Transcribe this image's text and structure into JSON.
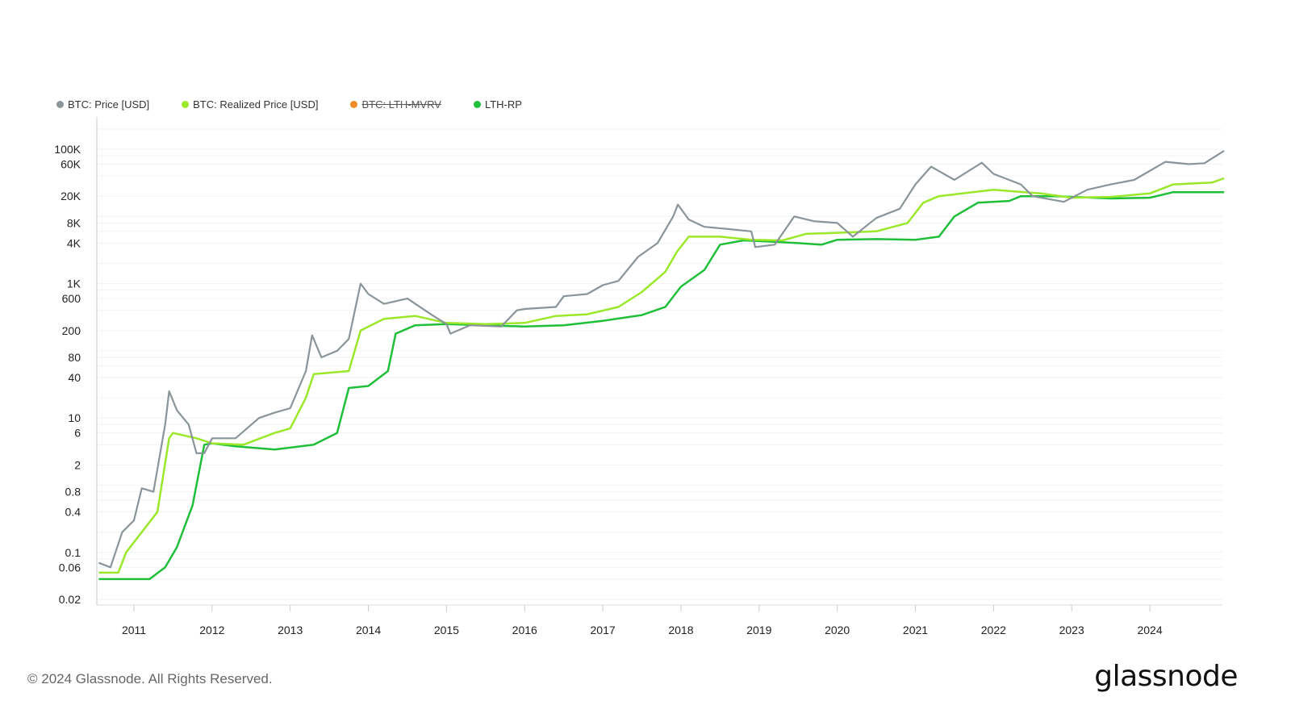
{
  "chart_data": {
    "type": "line",
    "title": "",
    "xlabel": "",
    "ylabel": "",
    "yscale": "log",
    "ylim": [
      0.015,
      200000
    ],
    "xlim": [
      2010.55,
      2024.95
    ],
    "grid": true,
    "legend_position": "top-left",
    "x_ticks": [
      "2011",
      "2012",
      "2013",
      "2014",
      "2015",
      "2016",
      "2017",
      "2018",
      "2019",
      "2020",
      "2021",
      "2022",
      "2023",
      "2024"
    ],
    "y_ticks": [
      {
        "label": "100K",
        "value": 100000
      },
      {
        "label": "60K",
        "value": 60000
      },
      {
        "label": "20K",
        "value": 20000
      },
      {
        "label": "8K",
        "value": 8000
      },
      {
        "label": "4K",
        "value": 4000
      },
      {
        "label": "1K",
        "value": 1000
      },
      {
        "label": "600",
        "value": 600
      },
      {
        "label": "200",
        "value": 200
      },
      {
        "label": "80",
        "value": 80
      },
      {
        "label": "40",
        "value": 40
      },
      {
        "label": "10",
        "value": 10
      },
      {
        "label": "6",
        "value": 6
      },
      {
        "label": "2",
        "value": 2
      },
      {
        "label": "0.8",
        "value": 0.8
      },
      {
        "label": "0.4",
        "value": 0.4
      },
      {
        "label": "0.1",
        "value": 0.1
      },
      {
        "label": "0.06",
        "value": 0.06
      },
      {
        "label": "0.02",
        "value": 0.02
      }
    ],
    "series": [
      {
        "name": "BTC: Price [USD]",
        "color": "#8a9499",
        "visible": true,
        "points": [
          [
            2010.55,
            0.07
          ],
          [
            2010.7,
            0.06
          ],
          [
            2010.85,
            0.2
          ],
          [
            2011.0,
            0.3
          ],
          [
            2011.1,
            0.9
          ],
          [
            2011.25,
            0.8
          ],
          [
            2011.4,
            8
          ],
          [
            2011.45,
            25
          ],
          [
            2011.55,
            13
          ],
          [
            2011.7,
            8
          ],
          [
            2011.8,
            3
          ],
          [
            2011.9,
            3
          ],
          [
            2012.0,
            5
          ],
          [
            2012.3,
            5
          ],
          [
            2012.6,
            10
          ],
          [
            2012.8,
            12
          ],
          [
            2013.0,
            14
          ],
          [
            2013.2,
            50
          ],
          [
            2013.28,
            170
          ],
          [
            2013.4,
            80
          ],
          [
            2013.6,
            100
          ],
          [
            2013.75,
            150
          ],
          [
            2013.9,
            1000
          ],
          [
            2014.0,
            700
          ],
          [
            2014.2,
            500
          ],
          [
            2014.5,
            600
          ],
          [
            2014.8,
            350
          ],
          [
            2015.0,
            250
          ],
          [
            2015.05,
            180
          ],
          [
            2015.3,
            240
          ],
          [
            2015.7,
            230
          ],
          [
            2015.9,
            400
          ],
          [
            2016.0,
            420
          ],
          [
            2016.4,
            450
          ],
          [
            2016.5,
            650
          ],
          [
            2016.8,
            700
          ],
          [
            2017.0,
            950
          ],
          [
            2017.2,
            1100
          ],
          [
            2017.45,
            2500
          ],
          [
            2017.7,
            4000
          ],
          [
            2017.9,
            10000
          ],
          [
            2017.96,
            15000
          ],
          [
            2018.1,
            9000
          ],
          [
            2018.3,
            7000
          ],
          [
            2018.6,
            6500
          ],
          [
            2018.9,
            6000
          ],
          [
            2018.95,
            3500
          ],
          [
            2019.2,
            3800
          ],
          [
            2019.45,
            10000
          ],
          [
            2019.7,
            8500
          ],
          [
            2020.0,
            8000
          ],
          [
            2020.2,
            5000
          ],
          [
            2020.5,
            9500
          ],
          [
            2020.8,
            13000
          ],
          [
            2021.0,
            30000
          ],
          [
            2021.2,
            55000
          ],
          [
            2021.5,
            35000
          ],
          [
            2021.85,
            63000
          ],
          [
            2022.0,
            43000
          ],
          [
            2022.35,
            30000
          ],
          [
            2022.5,
            20000
          ],
          [
            2022.9,
            16500
          ],
          [
            2023.2,
            25000
          ],
          [
            2023.5,
            30000
          ],
          [
            2023.8,
            35000
          ],
          [
            2024.2,
            65000
          ],
          [
            2024.5,
            60000
          ],
          [
            2024.7,
            62000
          ],
          [
            2024.95,
            95000
          ]
        ]
      },
      {
        "name": "BTC: Realized Price [USD]",
        "color": "#9be82a",
        "visible": true,
        "points": [
          [
            2010.55,
            0.05
          ],
          [
            2010.8,
            0.05
          ],
          [
            2010.9,
            0.1
          ],
          [
            2011.1,
            0.2
          ],
          [
            2011.3,
            0.4
          ],
          [
            2011.45,
            5
          ],
          [
            2011.5,
            6
          ],
          [
            2011.8,
            5
          ],
          [
            2012.0,
            4.2
          ],
          [
            2012.4,
            4
          ],
          [
            2012.8,
            6
          ],
          [
            2013.0,
            7
          ],
          [
            2013.2,
            20
          ],
          [
            2013.3,
            45
          ],
          [
            2013.75,
            50
          ],
          [
            2013.9,
            200
          ],
          [
            2014.2,
            300
          ],
          [
            2014.6,
            330
          ],
          [
            2015.0,
            260
          ],
          [
            2015.5,
            250
          ],
          [
            2016.0,
            260
          ],
          [
            2016.4,
            330
          ],
          [
            2016.8,
            350
          ],
          [
            2017.2,
            450
          ],
          [
            2017.5,
            750
          ],
          [
            2017.8,
            1500
          ],
          [
            2017.95,
            3000
          ],
          [
            2018.1,
            5000
          ],
          [
            2018.5,
            5000
          ],
          [
            2018.9,
            4500
          ],
          [
            2019.3,
            4400
          ],
          [
            2019.6,
            5500
          ],
          [
            2020.0,
            5700
          ],
          [
            2020.5,
            6000
          ],
          [
            2020.9,
            8000
          ],
          [
            2021.1,
            16000
          ],
          [
            2021.3,
            20000
          ],
          [
            2021.6,
            22000
          ],
          [
            2022.0,
            25000
          ],
          [
            2022.6,
            22000
          ],
          [
            2023.0,
            19000
          ],
          [
            2023.5,
            19500
          ],
          [
            2024.0,
            22000
          ],
          [
            2024.3,
            30000
          ],
          [
            2024.8,
            32000
          ],
          [
            2024.95,
            37000
          ]
        ]
      },
      {
        "name": "BTC: LTH-MVRV",
        "color": "#f08c28",
        "visible": false,
        "points": []
      },
      {
        "name": "LTH-RP",
        "color": "#1fbf3a",
        "visible": true,
        "points": [
          [
            2010.55,
            0.04
          ],
          [
            2011.2,
            0.04
          ],
          [
            2011.4,
            0.06
          ],
          [
            2011.55,
            0.12
          ],
          [
            2011.75,
            0.5
          ],
          [
            2011.9,
            4
          ],
          [
            2012.0,
            4.2
          ],
          [
            2012.3,
            3.8
          ],
          [
            2012.8,
            3.4
          ],
          [
            2013.3,
            4
          ],
          [
            2013.6,
            6
          ],
          [
            2013.75,
            28
          ],
          [
            2014.0,
            30
          ],
          [
            2014.25,
            50
          ],
          [
            2014.35,
            180
          ],
          [
            2014.6,
            240
          ],
          [
            2015.0,
            250
          ],
          [
            2015.5,
            240
          ],
          [
            2016.0,
            230
          ],
          [
            2016.5,
            240
          ],
          [
            2017.0,
            280
          ],
          [
            2017.5,
            340
          ],
          [
            2017.8,
            450
          ],
          [
            2018.0,
            900
          ],
          [
            2018.3,
            1600
          ],
          [
            2018.5,
            3800
          ],
          [
            2018.8,
            4400
          ],
          [
            2019.2,
            4200
          ],
          [
            2019.5,
            4000
          ],
          [
            2019.8,
            3800
          ],
          [
            2020.0,
            4500
          ],
          [
            2020.5,
            4600
          ],
          [
            2021.0,
            4500
          ],
          [
            2021.3,
            5000
          ],
          [
            2021.5,
            10000
          ],
          [
            2021.8,
            16000
          ],
          [
            2022.2,
            17000
          ],
          [
            2022.35,
            20000
          ],
          [
            2022.8,
            20000
          ],
          [
            2023.5,
            18500
          ],
          [
            2024.0,
            19000
          ],
          [
            2024.3,
            23000
          ],
          [
            2024.95,
            23000
          ]
        ]
      }
    ]
  },
  "footer": {
    "copyright": "© 2024 Glassnode. All Rights Reserved.",
    "logo": "glassnode"
  }
}
